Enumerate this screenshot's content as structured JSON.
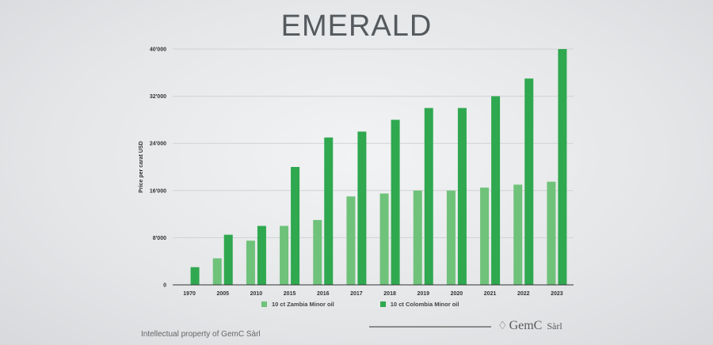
{
  "header": {
    "title": "EMERALD"
  },
  "colors": {
    "zambia": "#6fc27a",
    "colombia": "#2fa84f",
    "grid": "#cfd2d4",
    "axis": "#333333"
  },
  "chart_data": {
    "type": "bar",
    "title": "EMERALD",
    "xlabel": "",
    "ylabel": "Price per carat USD",
    "ylim": [
      0,
      40000
    ],
    "yticks": [
      0,
      8000,
      16000,
      24000,
      32000,
      40000
    ],
    "ytick_labels": [
      "0",
      "8'000",
      "16'000",
      "24'000",
      "32'000",
      "40'000"
    ],
    "grid": true,
    "legend_position": "bottom",
    "categories": [
      "1970",
      "2005",
      "2010",
      "2015",
      "2016",
      "2017",
      "2018",
      "2019",
      "2020",
      "2021",
      "2022",
      "2023"
    ],
    "series": [
      {
        "name": "10 ct Zambia Minor oil",
        "values": [
          0,
          4500,
          7500,
          10000,
          11000,
          15000,
          15500,
          16000,
          16000,
          16500,
          17000,
          17500
        ]
      },
      {
        "name": "10 ct Colombia Minor oil",
        "values": [
          3000,
          8500,
          10000,
          20000,
          25000,
          26000,
          28000,
          30000,
          30000,
          32000,
          35000,
          40000
        ]
      }
    ]
  },
  "footer": {
    "copyright": "Intellectual property of GemC Sàrl",
    "logo_main": "GemC",
    "logo_sub": "Sàrl",
    "logo_icon": "gem-icon"
  }
}
